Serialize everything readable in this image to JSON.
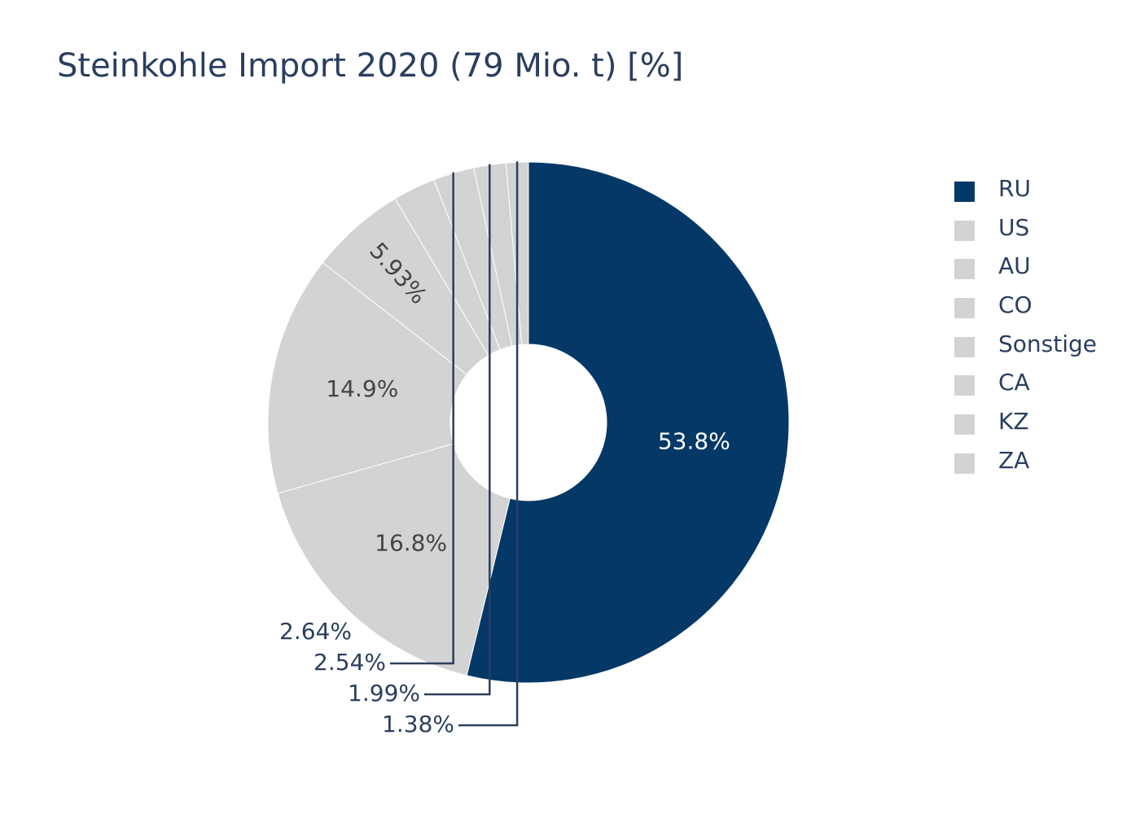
{
  "chart_data": {
    "type": "pie",
    "title": "Steinkohle Import 2020 (79 Mio. t) [%]",
    "hole": true,
    "categories": [
      "RU",
      "US",
      "AU",
      "CO",
      "Sonstige",
      "CA",
      "KZ",
      "ZA"
    ],
    "values": [
      53.8,
      16.8,
      14.9,
      5.93,
      2.64,
      2.54,
      1.99,
      1.38
    ],
    "labels": [
      "53.8%",
      "16.8%",
      "14.9%",
      "5.93%",
      "2.64%",
      "2.54%",
      "1.99%",
      "1.38%"
    ],
    "colors": [
      "#033867",
      "#d3d3d3",
      "#d3d3d3",
      "#d3d3d3",
      "#d3d3d3",
      "#d3d3d3",
      "#d3d3d3",
      "#d3d3d3"
    ],
    "legend_position": "right",
    "direction": "clockwise",
    "start": "12 o'clock"
  }
}
